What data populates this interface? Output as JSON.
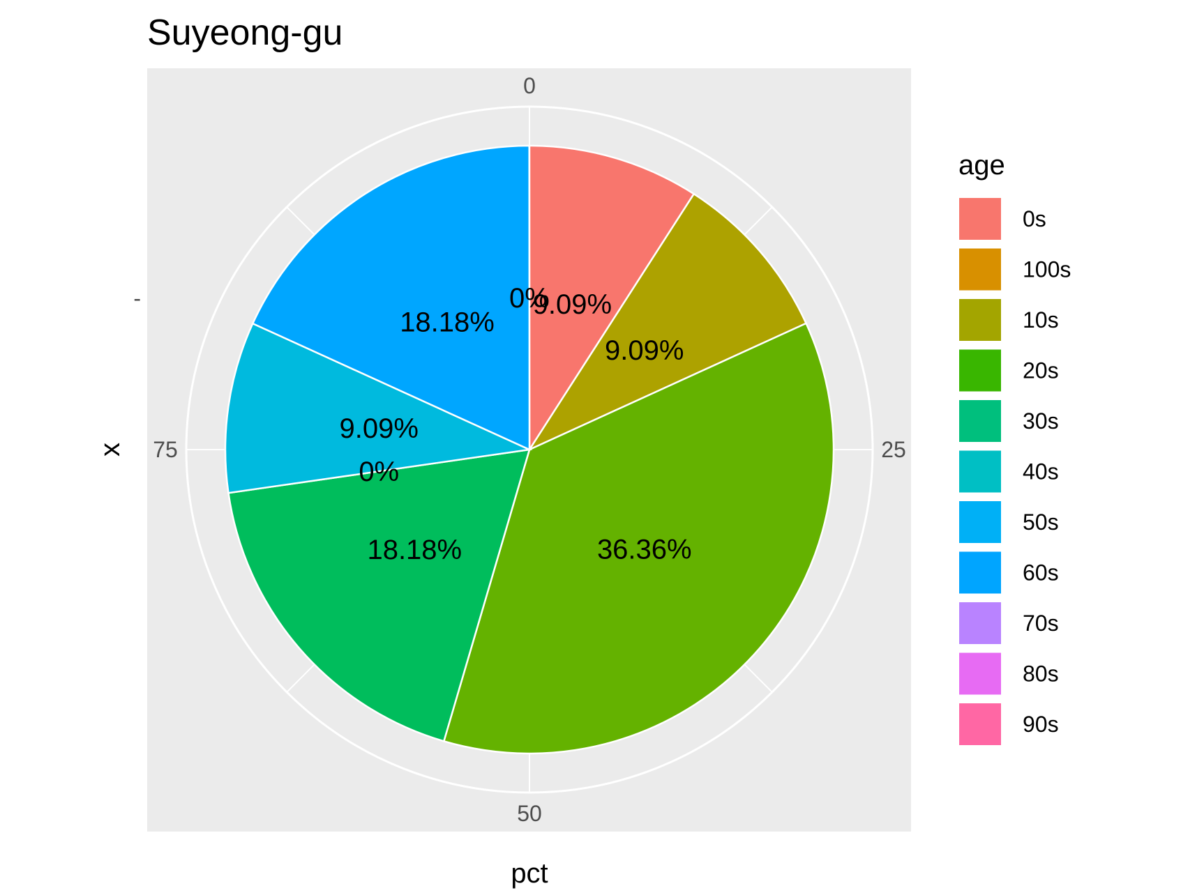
{
  "chart_data": {
    "type": "pie",
    "title": "Suyeong-gu",
    "xlabel": "pct",
    "ylabel": "x",
    "y_tick_label": "-",
    "angle_ticks": [
      {
        "value": 0,
        "label": "0"
      },
      {
        "value": 25,
        "label": "25"
      },
      {
        "value": 50,
        "label": "50"
      },
      {
        "value": 75,
        "label": "75"
      }
    ],
    "legend": {
      "title": "age",
      "placement": "right",
      "entries": [
        {
          "label": "0s",
          "color": "#F8766D"
        },
        {
          "label": "100s",
          "color": "#D89000"
        },
        {
          "label": "10s",
          "color": "#A3A500"
        },
        {
          "label": "20s",
          "color": "#39B600"
        },
        {
          "label": "30s",
          "color": "#00BF7D"
        },
        {
          "label": "40s",
          "color": "#00BFC4"
        },
        {
          "label": "50s",
          "color": "#00B0F6"
        },
        {
          "label": "60s",
          "color": "#00A5FF"
        },
        {
          "label": "70s",
          "color": "#B983FF"
        },
        {
          "label": "80s",
          "color": "#E76BF3"
        },
        {
          "label": "90s",
          "color": "#FF67A4"
        }
      ]
    },
    "slices": [
      {
        "age": "0s",
        "value": 9.09,
        "label": "9.09%",
        "color": "#F8766D"
      },
      {
        "age": "10s",
        "value": 9.09,
        "label": "9.09%",
        "color": "#ADA200"
      },
      {
        "age": "20s",
        "value": 36.36,
        "label": "36.36%",
        "color": "#64B200"
      },
      {
        "age": "30s",
        "value": 18.18,
        "label": "18.18%",
        "color": "#00BD5C"
      },
      {
        "age": "40s",
        "value": 0,
        "label": "0%",
        "color": "#00C1A7"
      },
      {
        "age": "50s",
        "value": 9.09,
        "label": "9.09%",
        "color": "#00BADE"
      },
      {
        "age": "60s",
        "value": 18.18,
        "label": "18.18%",
        "color": "#00A6FF"
      },
      {
        "age": "100s",
        "value": 0,
        "label": "0%",
        "color": "#DB8E00"
      }
    ],
    "grid": true,
    "panel_background": "#EBEBEB",
    "grid_color": "#FFFFFF"
  }
}
